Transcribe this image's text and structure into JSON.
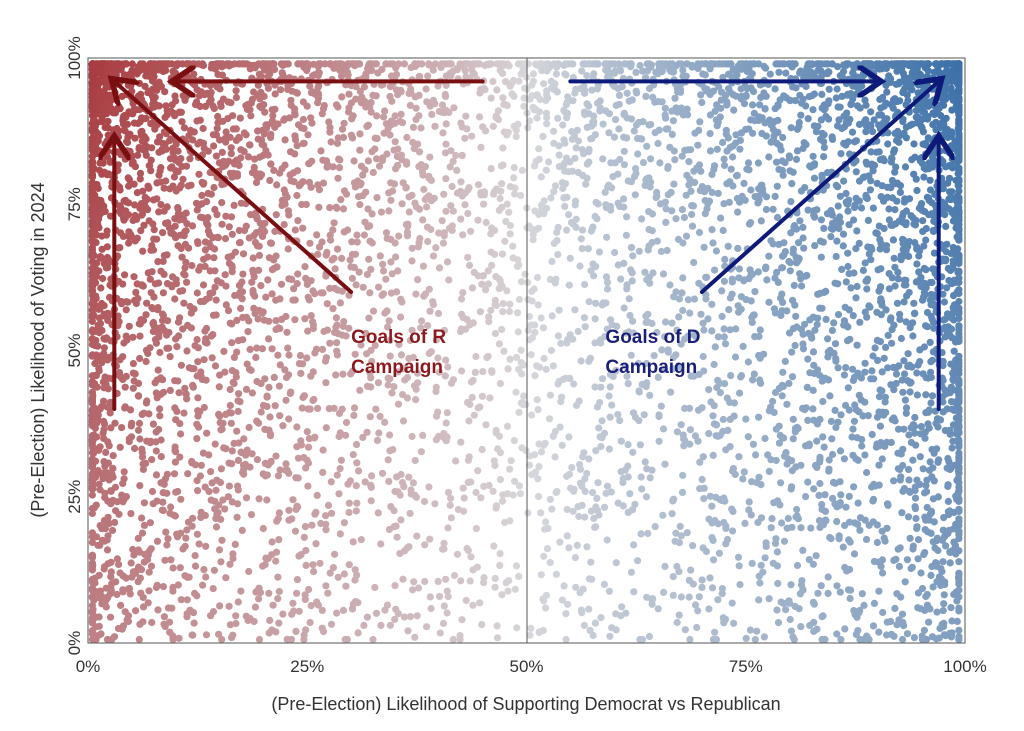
{
  "chart_data": {
    "type": "scatter",
    "xlabel": "(Pre-Election) Likelihood of Supporting Democrat vs Republican",
    "ylabel": "(Pre-Election) Likelihood of Voting in 2024",
    "xlim": [
      0,
      100
    ],
    "ylim": [
      0,
      100
    ],
    "x_ticks": [
      "0%",
      "25%",
      "50%",
      "75%",
      "100%"
    ],
    "y_ticks": [
      "0%",
      "25%",
      "50%",
      "75%",
      "100%"
    ],
    "grid": false,
    "midline_x": 50,
    "colors": {
      "republican": "#a83a3e",
      "democrat": "#3a6fa8",
      "neutral": "#d8d8dc",
      "r_arrow": "#7a0f12",
      "d_arrow": "#0d1a7a"
    },
    "point_distribution": {
      "description": "dense voter cloud; points concentrate toward top-left and top-right corners",
      "x_range": [
        0,
        100
      ],
      "y_range": [
        0,
        100
      ]
    },
    "annotations": [
      {
        "text": "Goals of R Campaign",
        "lines": [
          "Goals of R",
          "Campaign"
        ],
        "x": 30,
        "y": 53,
        "color": "#8b1a1e"
      },
      {
        "text": "Goals of D Campaign",
        "lines": [
          "Goals of D",
          "Campaign"
        ],
        "x": 59,
        "y": 53,
        "color": "#1a1f7a"
      }
    ],
    "arrows": [
      {
        "side": "R",
        "from": [
          45,
          96
        ],
        "to": [
          10,
          96
        ]
      },
      {
        "side": "R",
        "from": [
          30,
          60
        ],
        "to": [
          3,
          96
        ]
      },
      {
        "side": "R",
        "from": [
          3,
          40
        ],
        "to": [
          3,
          86
        ]
      },
      {
        "side": "D",
        "from": [
          55,
          96
        ],
        "to": [
          90,
          96
        ]
      },
      {
        "side": "D",
        "from": [
          70,
          60
        ],
        "to": [
          97,
          96
        ]
      },
      {
        "side": "D",
        "from": [
          97,
          40
        ],
        "to": [
          97,
          86
        ]
      }
    ]
  }
}
